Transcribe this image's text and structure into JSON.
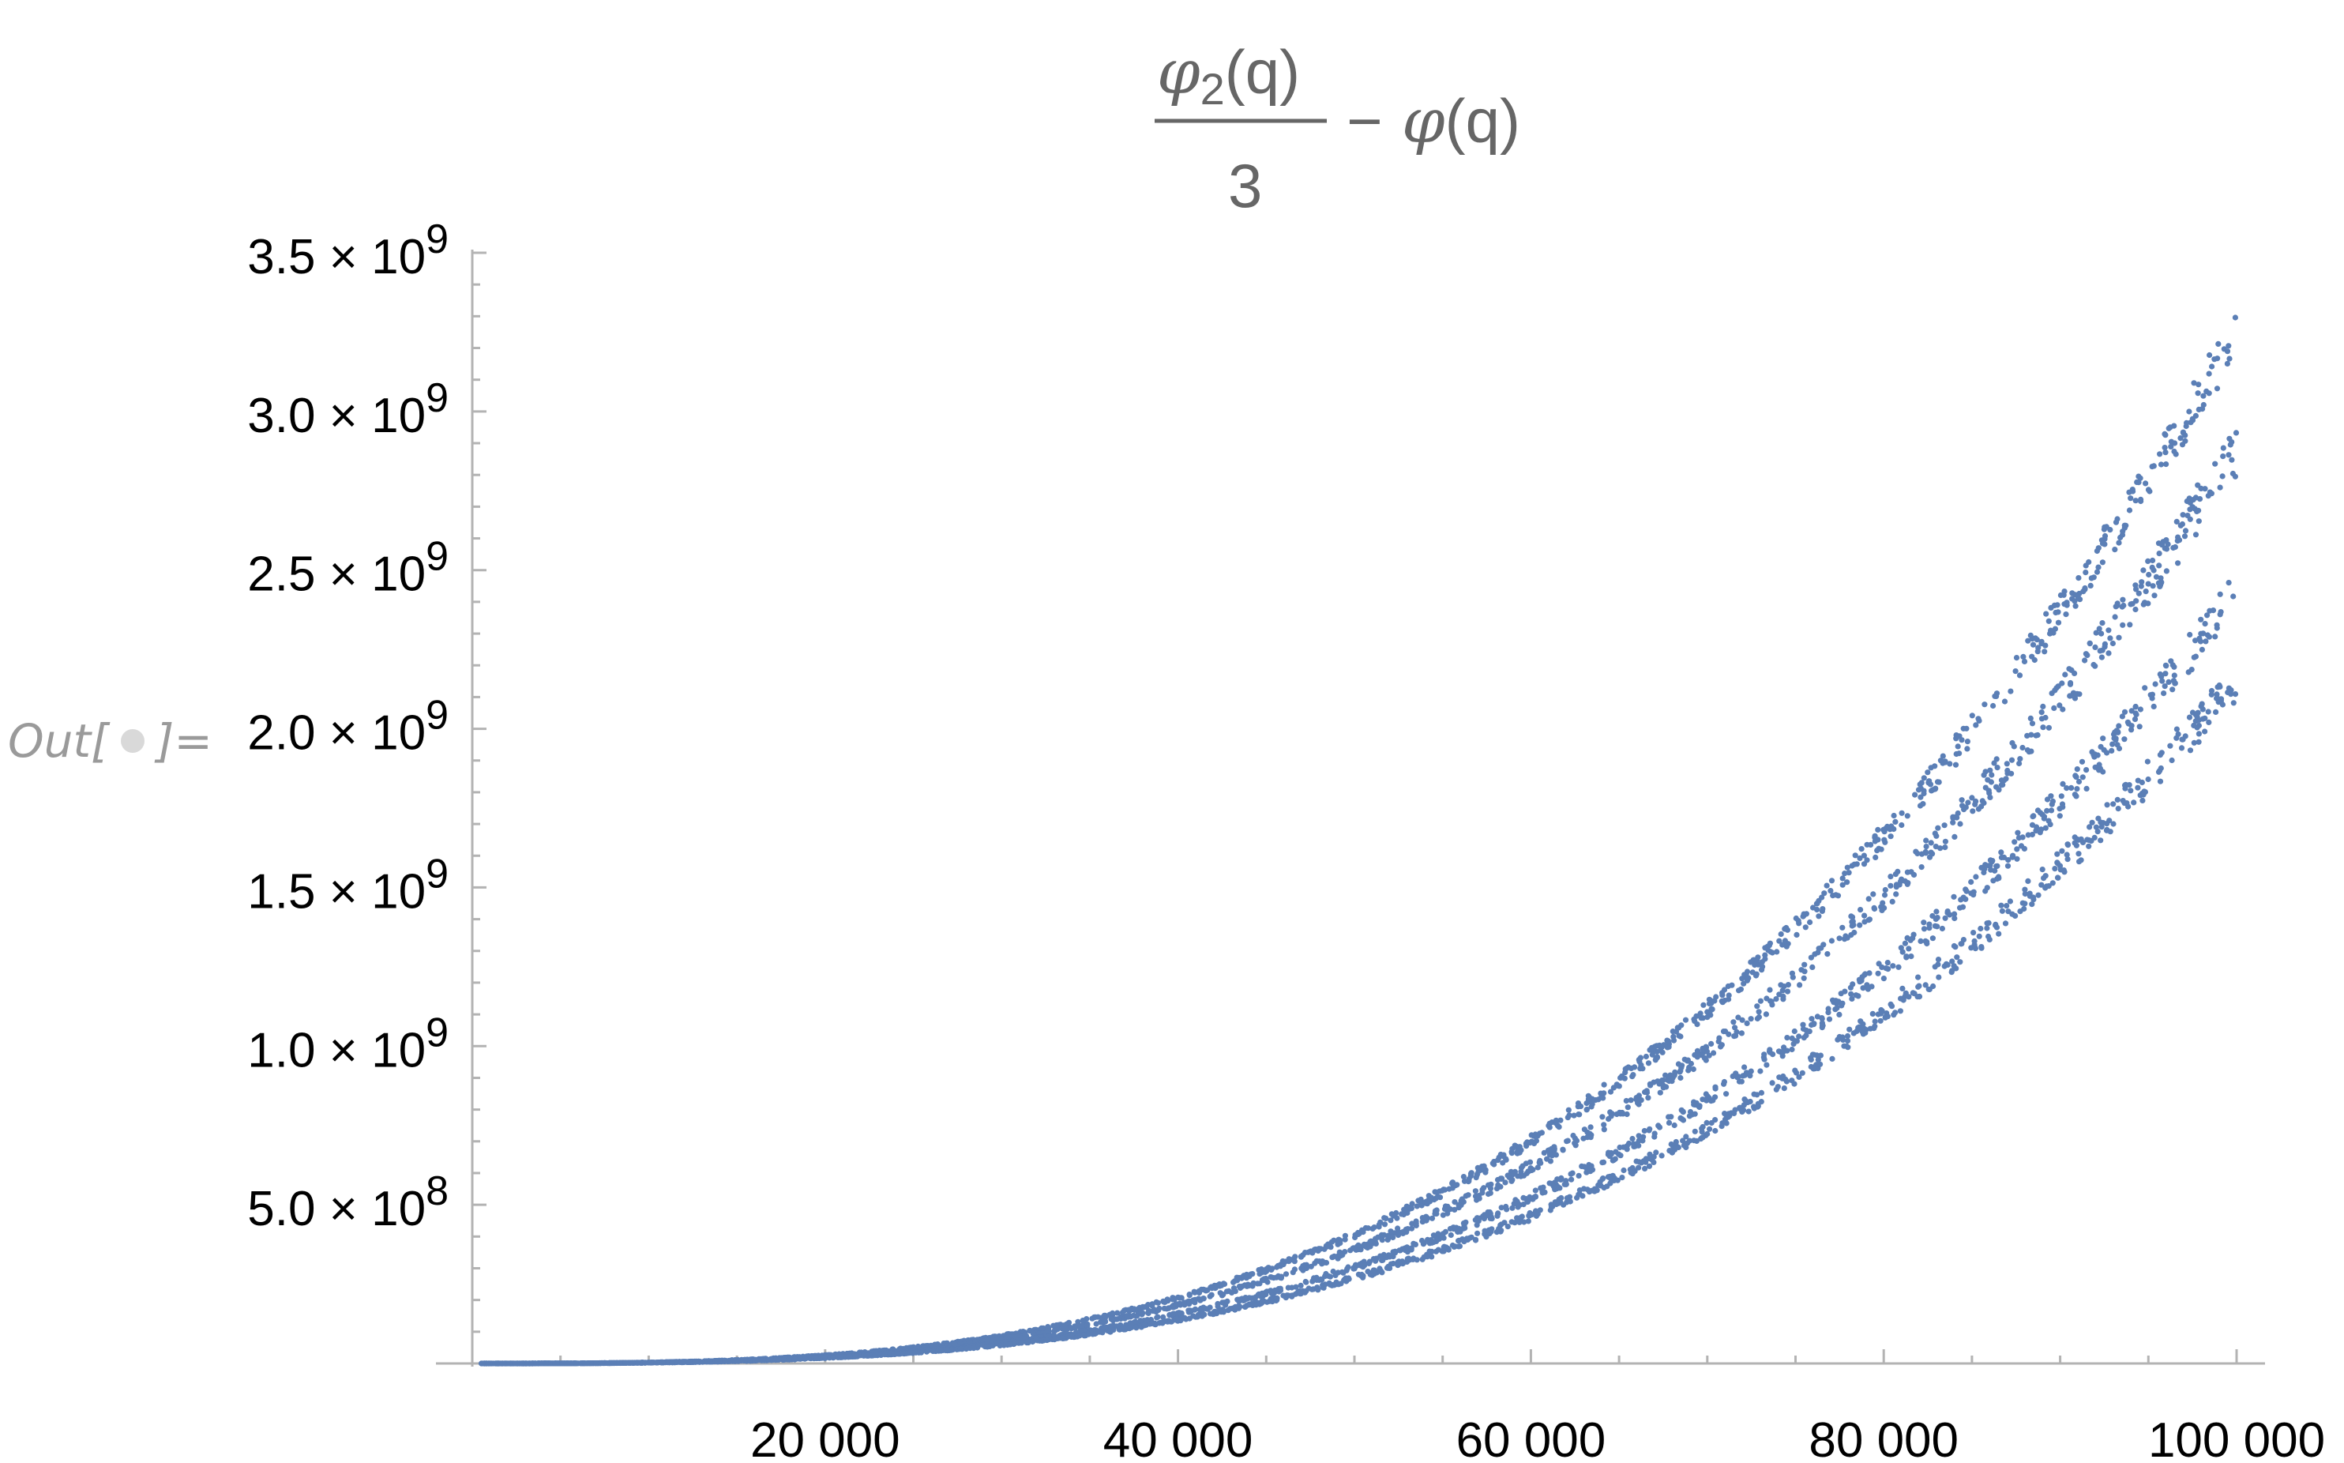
{
  "notebook": {
    "out_label": "Out[",
    "out_label_end": "]="
  },
  "chart_data": {
    "type": "scatter",
    "title": {
      "numerator_symbol": "φ",
      "numerator_subscript": "2",
      "numerator_arg": "(q)",
      "denominator": "3",
      "operator": "−",
      "rhs_symbol": "φ",
      "rhs_arg": "(q)"
    },
    "xlabel": "",
    "ylabel": "",
    "xlim": [
      0,
      100000
    ],
    "ylim": [
      0,
      3500000000
    ],
    "x_ticks": [
      {
        "value": 20000,
        "label": "20 000"
      },
      {
        "value": 40000,
        "label": "40 000"
      },
      {
        "value": 60000,
        "label": "60 000"
      },
      {
        "value": 80000,
        "label": "80 000"
      },
      {
        "value": 100000,
        "label": "100 000"
      }
    ],
    "y_ticks": [
      {
        "value": 500000000,
        "mantissa": "5.0",
        "times": " × 10",
        "exp": "8"
      },
      {
        "value": 1000000000,
        "mantissa": "1.0",
        "times": " × 10",
        "exp": "9"
      },
      {
        "value": 1500000000,
        "mantissa": "1.5",
        "times": " × 10",
        "exp": "9"
      },
      {
        "value": 2000000000,
        "mantissa": "2.0",
        "times": " × 10",
        "exp": "9"
      },
      {
        "value": 2500000000,
        "mantissa": "2.5",
        "times": " × 10",
        "exp": "9"
      },
      {
        "value": 3000000000,
        "mantissa": "3.0",
        "times": " × 10",
        "exp": "9"
      },
      {
        "value": 3500000000,
        "mantissa": "3.5",
        "times": " × 10",
        "exp": "9"
      }
    ],
    "grid": false,
    "legend": "none",
    "point_color": "#5b7fb6",
    "series": [
      {
        "x": [
          0,
          10000,
          20000,
          30000,
          40000,
          50000,
          60000,
          70000,
          80000,
          90000,
          100000
        ],
        "y": [
          0,
          3300000,
          26600000,
          89900000,
          213000000,
          416000000,
          719000000,
          1140000000,
          1700000000,
          2430000000,
          3330000000
        ],
        "band_spread": 160000000
      },
      {
        "x": [
          0,
          10000,
          20000,
          30000,
          40000,
          50000,
          60000,
          70000,
          80000,
          90000,
          100000
        ],
        "y": [
          0,
          2960000,
          23700000,
          79900000,
          189000000,
          370000000,
          640000000,
          1020000000,
          1520000000,
          2160000000,
          2960000000
        ],
        "band_spread": 170000000
      },
      {
        "x": [
          0,
          10000,
          20000,
          30000,
          40000,
          50000,
          60000,
          70000,
          80000,
          90000,
          100000
        ],
        "y": [
          0,
          2500000,
          20000000,
          67500000,
          160000000,
          312000000,
          540000000,
          857000000,
          1280000000,
          1820000000,
          2500000000
        ],
        "band_spread": 140000000
      },
      {
        "x": [
          0,
          10000,
          20000,
          30000,
          40000,
          50000,
          60000,
          70000,
          80000,
          90000,
          100000
        ],
        "y": [
          0,
          2220000,
          17800000,
          59900000,
          142000000,
          277000000,
          479000000,
          761000000,
          1140000000,
          1620000000,
          2220000000
        ],
        "band_spread": 130000000
      }
    ]
  }
}
